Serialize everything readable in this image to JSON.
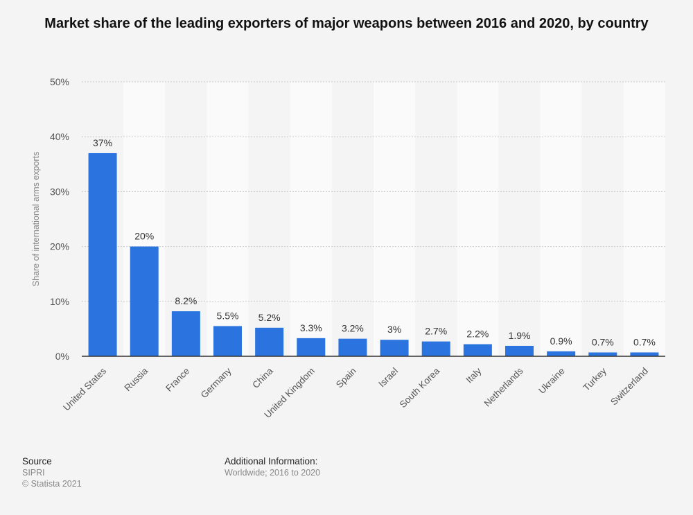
{
  "title": "Market share of the leading exporters of major weapons between 2016 and 2020, by country",
  "chart_data": {
    "type": "bar",
    "categories": [
      "United States",
      "Russia",
      "France",
      "Germany",
      "China",
      "United Kingdom",
      "Spain",
      "Israel",
      "South Korea",
      "Italy",
      "Netherlands",
      "Ukraine",
      "Turkey",
      "Switzerland"
    ],
    "values": [
      37,
      20,
      8.2,
      5.5,
      5.2,
      3.3,
      3.2,
      3,
      2.7,
      2.2,
      1.9,
      0.9,
      0.7,
      0.7
    ],
    "value_labels": [
      "37%",
      "20%",
      "8.2%",
      "5.5%",
      "5.2%",
      "3.3%",
      "3.2%",
      "3%",
      "2.7%",
      "2.2%",
      "1.9%",
      "0.9%",
      "0.7%",
      "0.7%"
    ],
    "ylabel": "Share of international arms exports",
    "xlabel": "",
    "ylim": [
      0,
      50
    ],
    "yticks": [
      0,
      10,
      20,
      30,
      40,
      50
    ],
    "ytick_labels": [
      "0%",
      "10%",
      "20%",
      "30%",
      "40%",
      "50%"
    ],
    "grid": true,
    "bar_color": "#2b74df"
  },
  "footer": {
    "source_heading": "Source",
    "source_name": "SIPRI",
    "copyright": "© Statista 2021",
    "info_heading": "Additional Information:",
    "info_text": "Worldwide; 2016 to 2020"
  }
}
